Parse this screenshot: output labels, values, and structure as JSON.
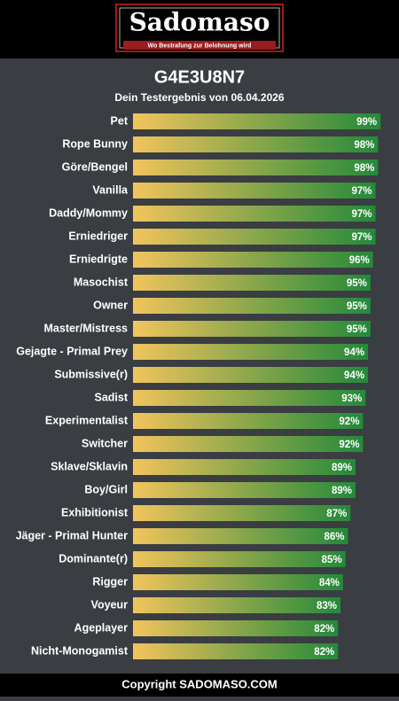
{
  "header": {
    "logo": "Sadomaso",
    "tagline": "Wo Bestrafung zur Belohnung wird"
  },
  "chart_data": {
    "type": "bar",
    "orientation": "horizontal",
    "title": "G4E3U8N7",
    "subtitle": "Dein Testergebnis von 06.04.2026",
    "categories": [
      "Pet",
      "Rope Bunny",
      "Göre/Bengel",
      "Vanilla",
      "Daddy/Mommy",
      "Erniedriger",
      "Erniedrigte",
      "Masochist",
      "Owner",
      "Master/Mistress",
      "Gejagte - Primal Prey",
      "Submissive(r)",
      "Sadist",
      "Experimentalist",
      "Switcher",
      "Sklave/Sklavin",
      "Boy/Girl",
      "Exhibitionist",
      "Jäger - Primal Hunter",
      "Dominante(r)",
      "Rigger",
      "Voyeur",
      "Ageplayer",
      "Nicht-Monogamist"
    ],
    "values": [
      99,
      98,
      98,
      97,
      97,
      97,
      96,
      95,
      95,
      95,
      94,
      94,
      93,
      92,
      92,
      89,
      89,
      87,
      86,
      85,
      84,
      83,
      82,
      82
    ],
    "value_labels": [
      "99%",
      "98%",
      "98%",
      "97%",
      "97%",
      "97%",
      "96%",
      "95%",
      "95%",
      "95%",
      "94%",
      "94%",
      "93%",
      "92%",
      "92%",
      "89%",
      "89%",
      "87%",
      "86%",
      "85%",
      "84%",
      "83%",
      "82%",
      "82%"
    ],
    "xlim": [
      0,
      100
    ],
    "colors": [
      "#f2c45c",
      "#23893a"
    ]
  },
  "footer": {
    "copyright": "Copyright SADOMASO.COM"
  }
}
